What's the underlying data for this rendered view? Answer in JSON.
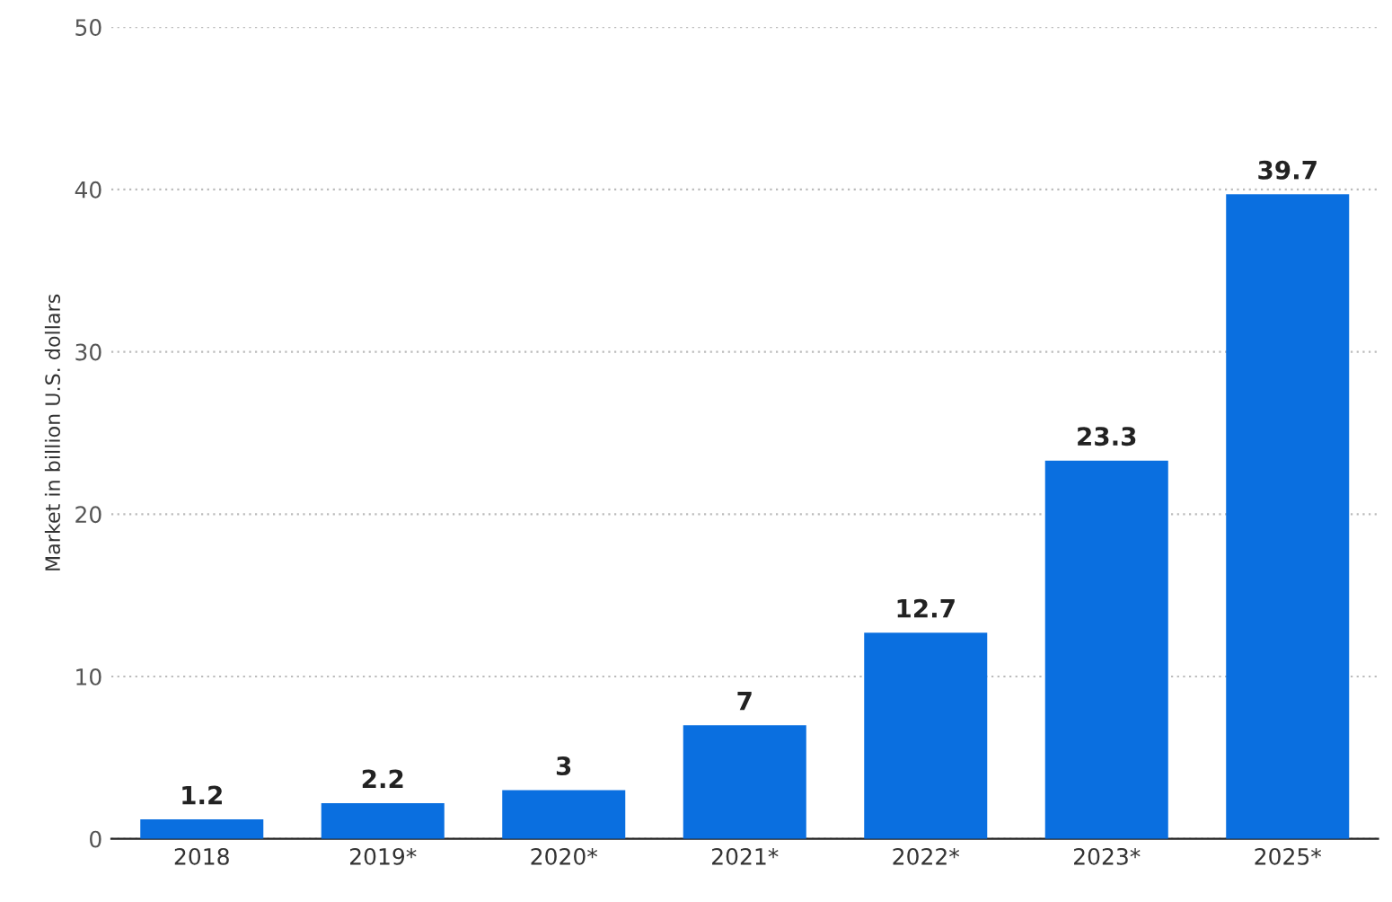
{
  "chart_data": {
    "type": "bar",
    "ylabel": "Market in billion U.S. dollars",
    "categories": [
      "2018",
      "2019*",
      "2020*",
      "2021*",
      "2022*",
      "2023*",
      "2025*"
    ],
    "values": [
      1.2,
      2.2,
      3,
      7,
      12.7,
      23.3,
      39.7
    ],
    "color": "#0a6fe0",
    "ylim": [
      0,
      50
    ],
    "yticks": [
      0,
      10,
      20,
      30,
      40,
      50
    ],
    "grid": "y",
    "data_labels": true
  }
}
